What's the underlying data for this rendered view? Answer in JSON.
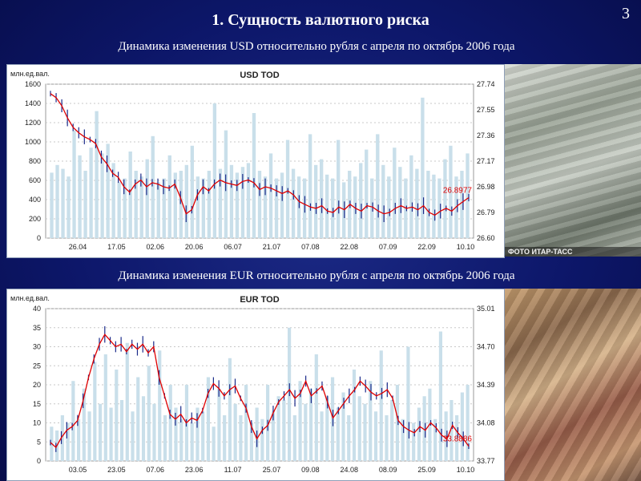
{
  "slide": {
    "title": "1. Сущность валютного риска",
    "number": "3",
    "subtitle_usd": "Динамика изменения USD относительно рубля с апреля по октябрь 2006 года",
    "subtitle_eur": "Динамика изменения EUR относительно рубля с апреля по октябрь 2006 года",
    "photo_usd_credit": "ФОТО ИТАР-ТАСС",
    "photo_usd_icon": "dollar-banknotes-photo",
    "photo_eur_icon": "euro-banknotes-photo"
  },
  "colors": {
    "background": "#0a1360",
    "volume_bar": "#c9dfea",
    "price_line": "#e00000",
    "candle": "#1a2a8a",
    "last_price": "#e00000",
    "grid": "#c8c8c8"
  },
  "chart_data": [
    {
      "type": "line",
      "title": "USD TOD",
      "ylabel": "млн.ед.вал.",
      "x_ticks": [
        "26.04",
        "17.05",
        "02.06",
        "20.06",
        "06.07",
        "21.07",
        "07.08",
        "22.08",
        "07.09",
        "22.09",
        "10.10"
      ],
      "volume_axis": {
        "ticks": [
          0,
          200,
          400,
          600,
          800,
          1000,
          1200,
          1400,
          1600
        ],
        "ylim": [
          0,
          1600
        ]
      },
      "price_axis": {
        "ticks": [
          26.6,
          26.79,
          26.98,
          27.17,
          27.36,
          27.55,
          27.74
        ],
        "ylim": [
          26.6,
          27.74
        ]
      },
      "last_price_label": "26.8977",
      "price_series": {
        "name": "price",
        "values": [
          27.67,
          27.64,
          27.58,
          27.49,
          27.42,
          27.38,
          27.35,
          27.33,
          27.3,
          27.2,
          27.15,
          27.08,
          27.05,
          26.98,
          26.94,
          27.0,
          27.03,
          26.98,
          27.01,
          27.0,
          26.98,
          26.97,
          27.0,
          26.9,
          26.78,
          26.81,
          26.92,
          26.98,
          26.95,
          27.0,
          27.03,
          27.01,
          27.0,
          26.99,
          27.02,
          27.03,
          27.01,
          26.96,
          26.98,
          26.97,
          26.95,
          26.93,
          26.95,
          26.92,
          26.87,
          26.85,
          26.83,
          26.82,
          26.84,
          26.8,
          26.79,
          26.83,
          26.81,
          26.85,
          26.82,
          26.8,
          26.84,
          26.83,
          26.8,
          26.78,
          26.79,
          26.82,
          26.84,
          26.82,
          26.83,
          26.81,
          26.84,
          26.79,
          26.77,
          26.8,
          26.82,
          26.8,
          26.84,
          26.87,
          26.9
        ]
      },
      "volume_series": {
        "name": "volume",
        "values": [
          680,
          760,
          720,
          640,
          1120,
          860,
          700,
          940,
          1320,
          880,
          980,
          780,
          580,
          620,
          900,
          700,
          640,
          820,
          1060,
          580,
          620,
          860,
          680,
          700,
          760,
          960,
          640,
          620,
          700,
          1400,
          720,
          1120,
          760,
          680,
          740,
          780,
          1300,
          700,
          640,
          880,
          620,
          680,
          1020,
          720,
          640,
          620,
          1080,
          760,
          820,
          660,
          620,
          1020,
          580,
          700,
          640,
          780,
          920,
          620,
          1080,
          760,
          640,
          940,
          740,
          620,
          860,
          720,
          1460,
          700,
          660,
          620,
          820,
          960,
          640,
          700,
          880
        ]
      }
    },
    {
      "type": "line",
      "title": "EUR TOD",
      "ylabel": "млн.ед.вал.",
      "x_ticks": [
        "03.05",
        "23.05",
        "07.06",
        "23.06",
        "11.07",
        "25.07",
        "09.08",
        "24.08",
        "08.09",
        "25.09",
        "10.10"
      ],
      "volume_axis": {
        "ticks": [
          0,
          5,
          10,
          15,
          20,
          25,
          30,
          35,
          40
        ],
        "ylim": [
          0,
          40
        ]
      },
      "price_axis": {
        "ticks": [
          33.77,
          34.08,
          34.39,
          34.7,
          35.01
        ],
        "ylim": [
          33.77,
          35.01
        ]
      },
      "last_price_label": "33.8886",
      "price_series": {
        "name": "price",
        "values": [
          33.92,
          33.88,
          33.96,
          34.02,
          34.05,
          34.1,
          34.26,
          34.45,
          34.6,
          34.72,
          34.8,
          34.75,
          34.7,
          34.72,
          34.66,
          34.72,
          34.68,
          34.72,
          34.65,
          34.7,
          34.45,
          34.3,
          34.15,
          34.11,
          34.15,
          34.08,
          34.12,
          34.1,
          34.18,
          34.32,
          34.4,
          34.36,
          34.3,
          34.35,
          34.38,
          34.28,
          34.2,
          34.05,
          33.95,
          34.02,
          34.06,
          34.16,
          34.25,
          34.3,
          34.35,
          34.28,
          34.32,
          34.42,
          34.3,
          34.34,
          34.38,
          34.25,
          34.12,
          34.18,
          34.24,
          34.3,
          34.35,
          34.42,
          34.38,
          34.33,
          34.3,
          34.32,
          34.35,
          34.28,
          34.1,
          34.05,
          34.02,
          34.0,
          34.05,
          34.02,
          34.08,
          34.04,
          33.98,
          33.95,
          34.06,
          34.0,
          33.95,
          33.89
        ]
      },
      "volume_series": {
        "name": "volume",
        "values": [
          9,
          8,
          12,
          10,
          21,
          11,
          19,
          13,
          26,
          15,
          28,
          14,
          24,
          16,
          31,
          13,
          22,
          17,
          25,
          15,
          29,
          12,
          20,
          14,
          11,
          20,
          10,
          14,
          13,
          22,
          9,
          19,
          12,
          27,
          15,
          12,
          20,
          10,
          14,
          11,
          20,
          13,
          17,
          16,
          35,
          12,
          21,
          15,
          19,
          28,
          13,
          17,
          22,
          14,
          18,
          12,
          24,
          17,
          15,
          21,
          13,
          29,
          12,
          16,
          20,
          11,
          30,
          10,
          14,
          17,
          19,
          11,
          34,
          13,
          16,
          12,
          18,
          20
        ]
      }
    }
  ]
}
